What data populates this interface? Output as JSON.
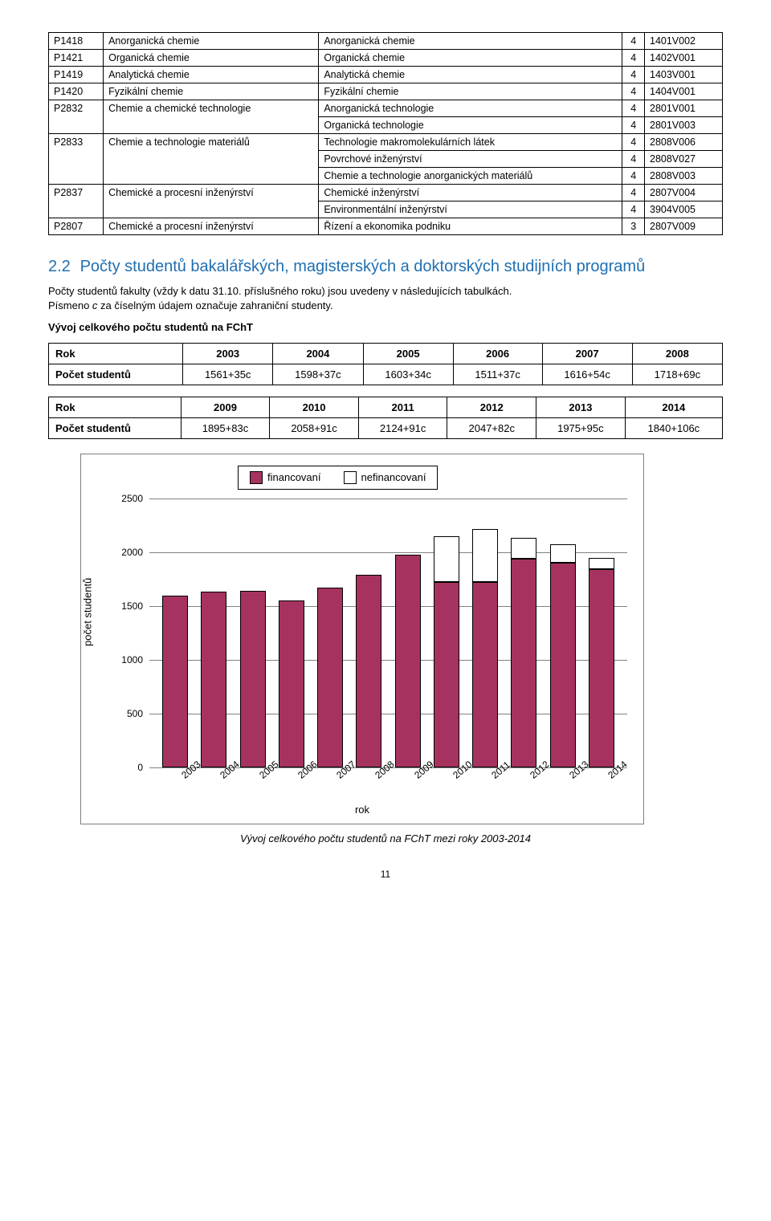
{
  "table_main": {
    "rows": [
      {
        "c0": "P1418",
        "c1": "Anorganická chemie",
        "rs1": 1,
        "c2": "Anorganická chemie",
        "c3": "4",
        "c4": "1401V002"
      },
      {
        "c0": "P1421",
        "c1": "Organická chemie",
        "rs1": 1,
        "c2": "Organická chemie",
        "c3": "4",
        "c4": "1402V001"
      },
      {
        "c0": "P1419",
        "c1": "Analytická chemie",
        "rs1": 1,
        "c2": "Analytická chemie",
        "c3": "4",
        "c4": "1403V001"
      },
      {
        "c0": "P1420",
        "c1": "Fyzikální chemie",
        "rs1": 1,
        "c2": "Fyzikální chemie",
        "c3": "4",
        "c4": "1404V001"
      },
      {
        "c0": "P2832",
        "c1": "Chemie a chemické technologie",
        "rs1": 2,
        "c2": "Anorganická technologie",
        "c3": "4",
        "c4": "2801V001"
      },
      {
        "skip01": true,
        "c2": "Organická technologie",
        "c3": "4",
        "c4": "2801V003"
      },
      {
        "c0": "P2833",
        "c1": "Chemie a technologie materiálů",
        "rs1": 3,
        "c2": "Technologie makromolekulárních látek",
        "c3": "4",
        "c4": "2808V006"
      },
      {
        "skip01": true,
        "c2": "Povrchové inženýrství",
        "c3": "4",
        "c4": "2808V027"
      },
      {
        "skip01": true,
        "c2": "Chemie a technologie anorganických materiálů",
        "c3": "4",
        "c4": "2808V003"
      },
      {
        "c0": "P2837",
        "c1": "Chemické a procesní inženýrství",
        "rs1": 2,
        "c2": "Chemické inženýrství",
        "c3": "4",
        "c4": "2807V004"
      },
      {
        "skip01": true,
        "c2": "Environmentální inženýrství",
        "c3": "4",
        "c4": "3904V005"
      },
      {
        "c0": "P2807",
        "c1": "Chemické a procesní inženýrství",
        "rs1": 1,
        "c2": "Řízení a ekonomika podniku",
        "c3": "3",
        "c4": "2807V009"
      }
    ]
  },
  "section": {
    "num": "2.2",
    "title": "Počty studentů bakalářských, magisterských a doktorských studijních programů"
  },
  "paragraph": {
    "line1a": "Počty studentů fakulty (vždy k datu 31.10. příslušného roku) jsou uvedeny v následujících tabulkách.",
    "line2a": "Písmeno ",
    "line2em": "c",
    "line2b": " za číselným údajem označuje zahraniční studenty."
  },
  "subheading": "Vývoj celkového počtu studentů na FChT",
  "summary1": {
    "header": [
      "Rok",
      "2003",
      "2004",
      "2005",
      "2006",
      "2007",
      "2008"
    ],
    "rowlabel": "Počet studentů",
    "row": [
      "1561+35c",
      "1598+37c",
      "1603+34c",
      "1511+37c",
      "1616+54c",
      "1718+69c"
    ]
  },
  "summary2": {
    "header": [
      "Rok",
      "2009",
      "2010",
      "2011",
      "2012",
      "2013",
      "2014"
    ],
    "rowlabel": "Počet studentů",
    "row": [
      "1895+83c",
      "2058+91c",
      "2124+91c",
      "2047+82c",
      "1975+95c",
      "1840+106c"
    ]
  },
  "chart": {
    "legend": {
      "series1": "financovaní",
      "series2": "nefinancovaní"
    },
    "series1_color": "#a6335f",
    "series2_color": "#ffffff",
    "ylabel": "počet studentů",
    "xlabel": "rok",
    "ylim": [
      0,
      2500
    ],
    "ytick_step": 500,
    "grid_color": "#808080",
    "categories": [
      "2003",
      "2004",
      "2005",
      "2006",
      "2007",
      "2008",
      "2009",
      "2010",
      "2011",
      "2012",
      "2013",
      "2014"
    ],
    "financed": [
      1596,
      1635,
      1637,
      1548,
      1670,
      1787,
      1978,
      1720,
      1720,
      1940,
      1900,
      1840
    ],
    "unfinanced": [
      0,
      0,
      0,
      0,
      0,
      0,
      0,
      429,
      495,
      189,
      170,
      106
    ]
  },
  "caption": "Vývoj celkového počtu studentů na FChT mezi roky 2003-2014",
  "page_number": "11"
}
